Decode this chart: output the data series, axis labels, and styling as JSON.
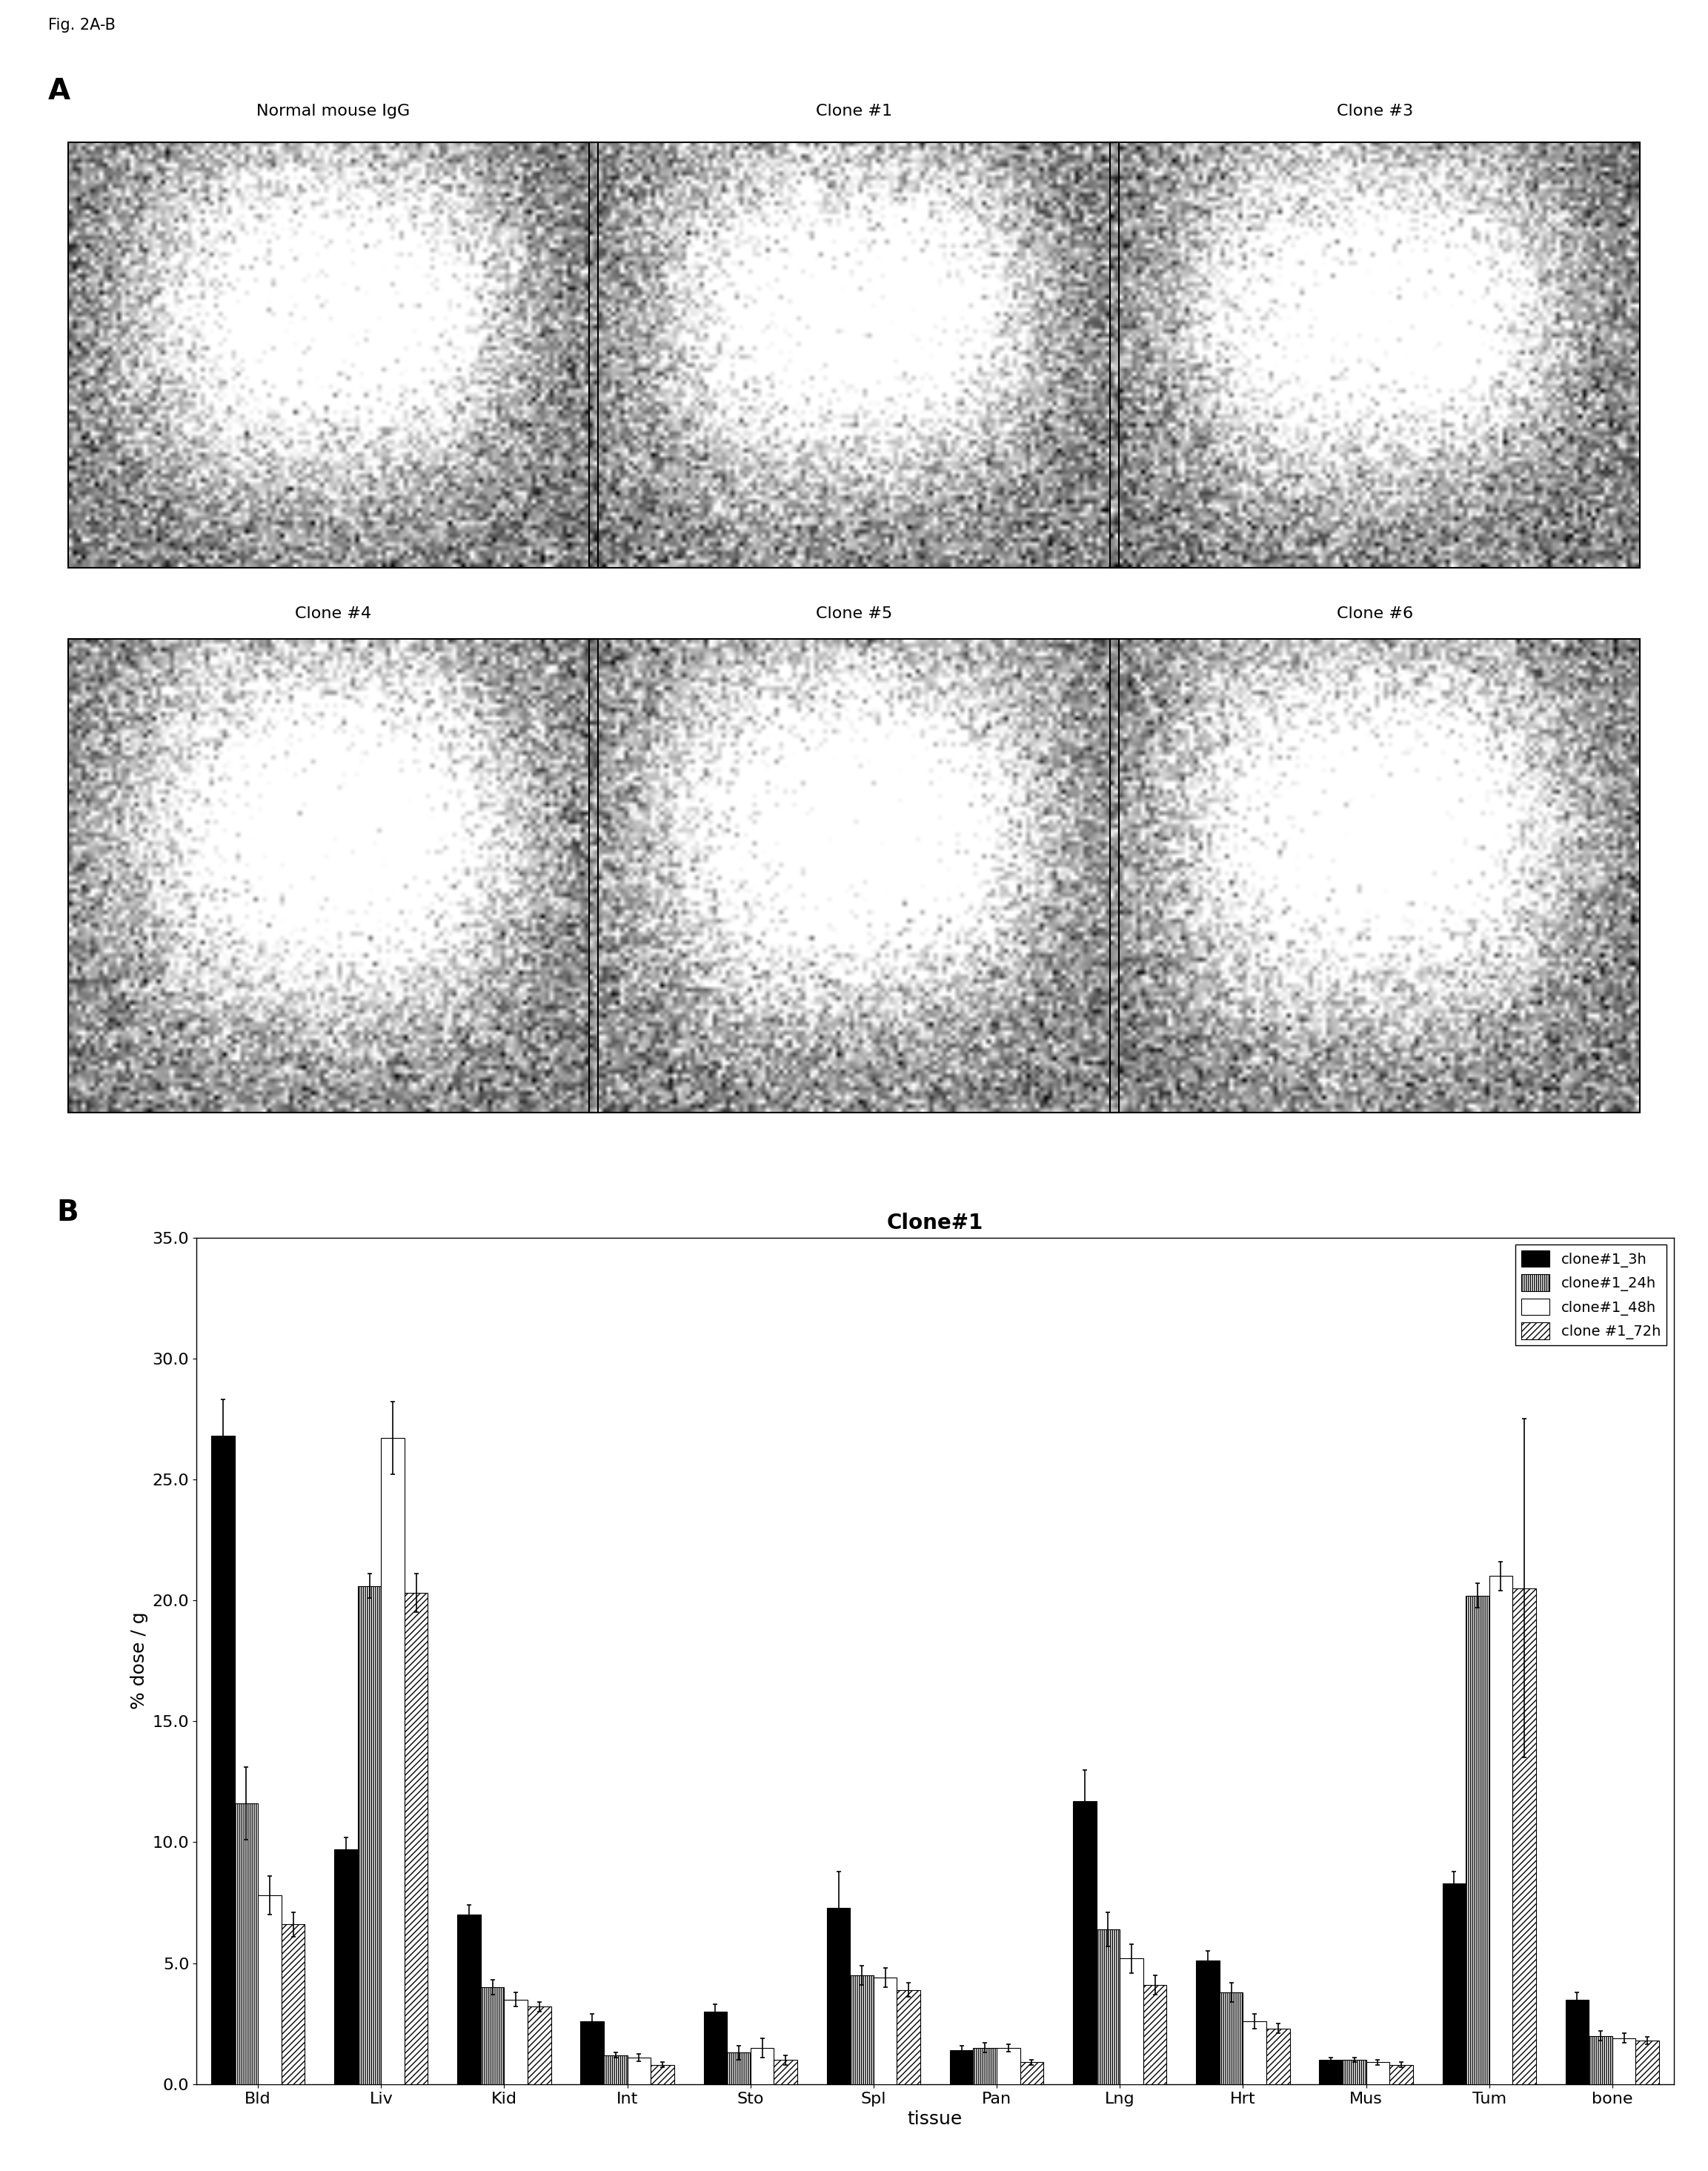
{
  "fig_label": "Fig. 2A-B",
  "panel_a_label": "A",
  "panel_b_label": "B",
  "panel_a_row1_labels": [
    "Normal mouse IgG",
    "Clone #1",
    "Clone #3"
  ],
  "panel_a_row2_labels": [
    "Clone #4",
    "Clone #5",
    "Clone #6"
  ],
  "chart_title": "Clone#1",
  "xlabel": "tissue",
  "ylabel": "% dose / g",
  "ylim": [
    0,
    35.0
  ],
  "yticks": [
    0.0,
    5.0,
    10.0,
    15.0,
    20.0,
    25.0,
    30.0,
    35.0
  ],
  "categories": [
    "Bld",
    "Liv",
    "Kid",
    "Int",
    "Sto",
    "Spl",
    "Pan",
    "Lng",
    "Hrt",
    "Mus",
    "Tum",
    "bone"
  ],
  "series": [
    {
      "label": "clone#1_3h",
      "hatch": "",
      "facecolor": "#000000",
      "edgecolor": "#000000",
      "values": [
        26.8,
        9.7,
        7.0,
        2.6,
        3.0,
        7.3,
        1.4,
        11.7,
        5.1,
        1.0,
        8.3,
        3.5
      ],
      "errors": [
        1.5,
        0.5,
        0.4,
        0.3,
        0.3,
        1.5,
        0.2,
        1.3,
        0.4,
        0.1,
        0.5,
        0.3
      ]
    },
    {
      "label": "clone#1_24h",
      "hatch": "||||||",
      "facecolor": "#ffffff",
      "edgecolor": "#000000",
      "values": [
        11.6,
        20.6,
        4.0,
        1.2,
        1.3,
        4.5,
        1.5,
        6.4,
        3.8,
        1.0,
        20.2,
        2.0
      ],
      "errors": [
        1.5,
        0.5,
        0.3,
        0.1,
        0.3,
        0.4,
        0.2,
        0.7,
        0.4,
        0.1,
        0.5,
        0.2
      ]
    },
    {
      "label": "clone#1_48h",
      "hatch": "",
      "facecolor": "#ffffff",
      "edgecolor": "#000000",
      "values": [
        7.8,
        26.7,
        3.5,
        1.1,
        1.5,
        4.4,
        1.5,
        5.2,
        2.6,
        0.9,
        21.0,
        1.9
      ],
      "errors": [
        0.8,
        1.5,
        0.3,
        0.15,
        0.4,
        0.4,
        0.15,
        0.6,
        0.3,
        0.1,
        0.6,
        0.2
      ]
    },
    {
      "label": "clone #1_72h",
      "hatch": "////",
      "facecolor": "#ffffff",
      "edgecolor": "#000000",
      "values": [
        6.6,
        20.3,
        3.2,
        0.8,
        1.0,
        3.9,
        0.9,
        4.1,
        2.3,
        0.8,
        20.5,
        1.8
      ],
      "errors": [
        0.5,
        0.8,
        0.2,
        0.1,
        0.2,
        0.3,
        0.1,
        0.4,
        0.2,
        0.1,
        7.0,
        0.15
      ]
    }
  ],
  "bar_width": 0.19,
  "img_noise_seed": 42,
  "img_bg_mean": 0.45,
  "img_bg_std": 0.18
}
